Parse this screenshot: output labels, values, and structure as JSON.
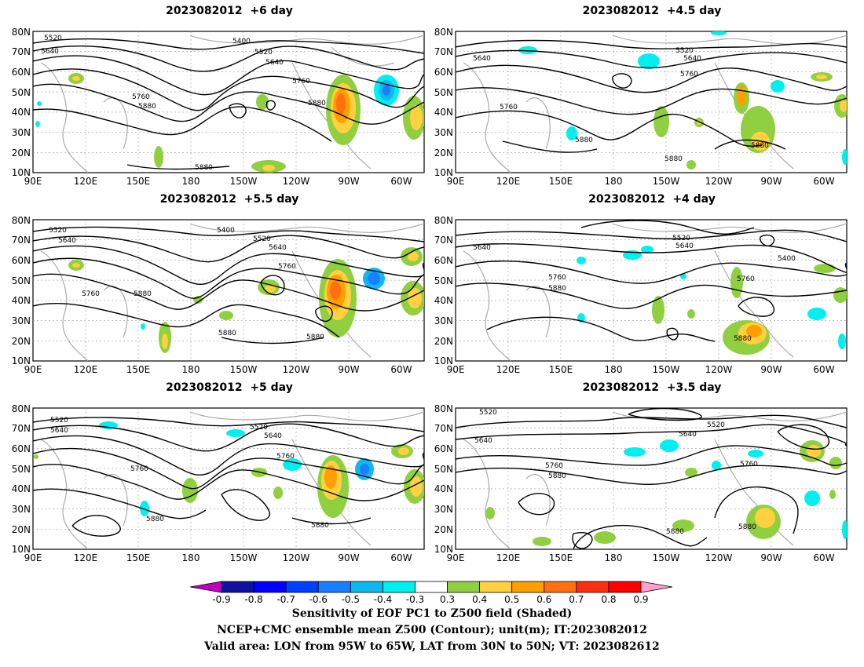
{
  "panels": [
    {
      "id": "p1",
      "title": "2023082012  +6 day",
      "contour_labels": [
        "5520",
        "5400",
        "5520",
        "5640",
        "5640",
        "5760",
        "5760",
        "5880",
        "5880",
        "5880"
      ]
    },
    {
      "id": "p2",
      "title": "2023082012  +4.5 day",
      "contour_labels": [
        "5520",
        "5640",
        "5640",
        "5760",
        "5760",
        "5880",
        "5880",
        "5880"
      ]
    },
    {
      "id": "p3",
      "title": "2023082012  +5.5 day",
      "contour_labels": [
        "5520",
        "5400",
        "5640",
        "5520",
        "5640",
        "5760",
        "5760",
        "5880",
        "5880",
        "5880"
      ]
    },
    {
      "id": "p4",
      "title": "2023082012  +4 day",
      "contour_labels": [
        "5520",
        "5640",
        "5640",
        "5400",
        "5760",
        "5880",
        "5760",
        "5880"
      ]
    },
    {
      "id": "p5",
      "title": "2023082012  +5 day",
      "contour_labels": [
        "5520",
        "5640",
        "5520",
        "5640",
        "5760",
        "5760",
        "5880",
        "5880"
      ]
    },
    {
      "id": "p6",
      "title": "2023082012  +3.5 day",
      "contour_labels": [
        "5520",
        "5520",
        "5640",
        "5640",
        "5760",
        "5760",
        "5880",
        "5880",
        "5880"
      ]
    }
  ],
  "lat_ticks": [
    "80N",
    "70N",
    "60N",
    "50N",
    "40N",
    "30N",
    "20N",
    "10N"
  ],
  "lon_ticks": [
    "90E",
    "120E",
    "150E",
    "180",
    "150W",
    "120W",
    "90W",
    "60W"
  ],
  "colorbar": {
    "labels": [
      "-0.9",
      "-0.8",
      "-0.7",
      "-0.6",
      "-0.5",
      "-0.4",
      "-0.3",
      "0.3",
      "0.4",
      "0.5",
      "0.6",
      "0.7",
      "0.8",
      "0.9"
    ],
    "colors": [
      "#c000c0",
      "#1010a0",
      "#0000ff",
      "#0040ff",
      "#1a7fff",
      "#10b8f0",
      "#00f0f0",
      "#ffffff",
      "#90d040",
      "#ffd040",
      "#ffa000",
      "#ff7010",
      "#ff3010",
      "#ff0000",
      "#ffa0d0"
    ]
  },
  "footer": {
    "line1": "Sensitivity of EOF PC1 to Z500 field (Shaded)",
    "line2": "NCEP+CMC ensemble mean Z500 (Contour); unit(m); IT:2023082012",
    "line3": "Valid area: LON from 95W to 65W, LAT from 30N to 50N; VT: 2023082612"
  }
}
